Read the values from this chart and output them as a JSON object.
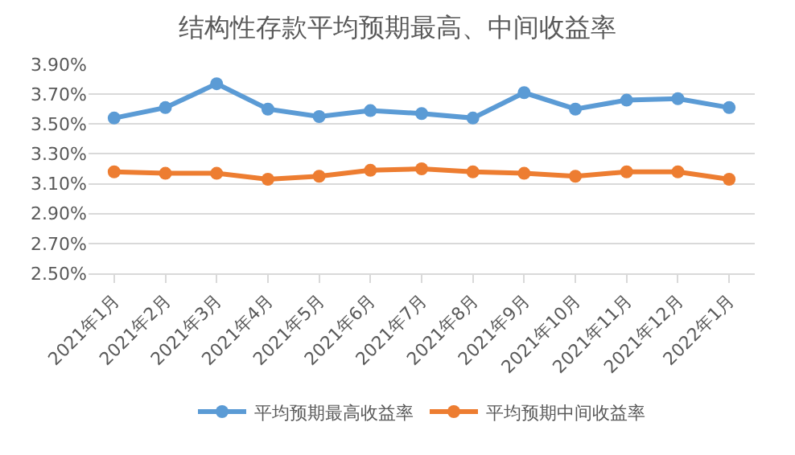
{
  "chart_data": {
    "type": "line",
    "title": "结构性存款平均预期最高、中间收益率",
    "categories": [
      "2021年1月",
      "2021年2月",
      "2021年3月",
      "2021年4月",
      "2021年5月",
      "2021年6月",
      "2021年7月",
      "2021年8月",
      "2021年9月",
      "2021年10月",
      "2021年11月",
      "2021年12月",
      "2022年1月"
    ],
    "series": [
      {
        "name": "平均预期最高收益率",
        "color": "#5b9bd5",
        "values": [
          3.54,
          3.61,
          3.77,
          3.6,
          3.55,
          3.59,
          3.57,
          3.54,
          3.71,
          3.6,
          3.66,
          3.67,
          3.61
        ]
      },
      {
        "name": "平均预期中间收益率",
        "color": "#ed7d31",
        "values": [
          3.18,
          3.17,
          3.17,
          3.13,
          3.15,
          3.19,
          3.2,
          3.18,
          3.17,
          3.15,
          3.18,
          3.18,
          3.13
        ]
      }
    ],
    "ylim": [
      2.5,
      3.9
    ],
    "yticks": [
      {
        "value": 2.5,
        "label": "2.50%"
      },
      {
        "value": 2.7,
        "label": "2.70%"
      },
      {
        "value": 2.9,
        "label": "2.90%"
      },
      {
        "value": 3.1,
        "label": "3.10%"
      },
      {
        "value": 3.3,
        "label": "3.30%"
      },
      {
        "value": 3.5,
        "label": "3.50%"
      },
      {
        "value": 3.7,
        "label": "3.70%"
      },
      {
        "value": 3.9,
        "label": "3.90%"
      }
    ],
    "grid": "y",
    "legend": "bottom",
    "marker": "circle",
    "line_style": "solid"
  }
}
